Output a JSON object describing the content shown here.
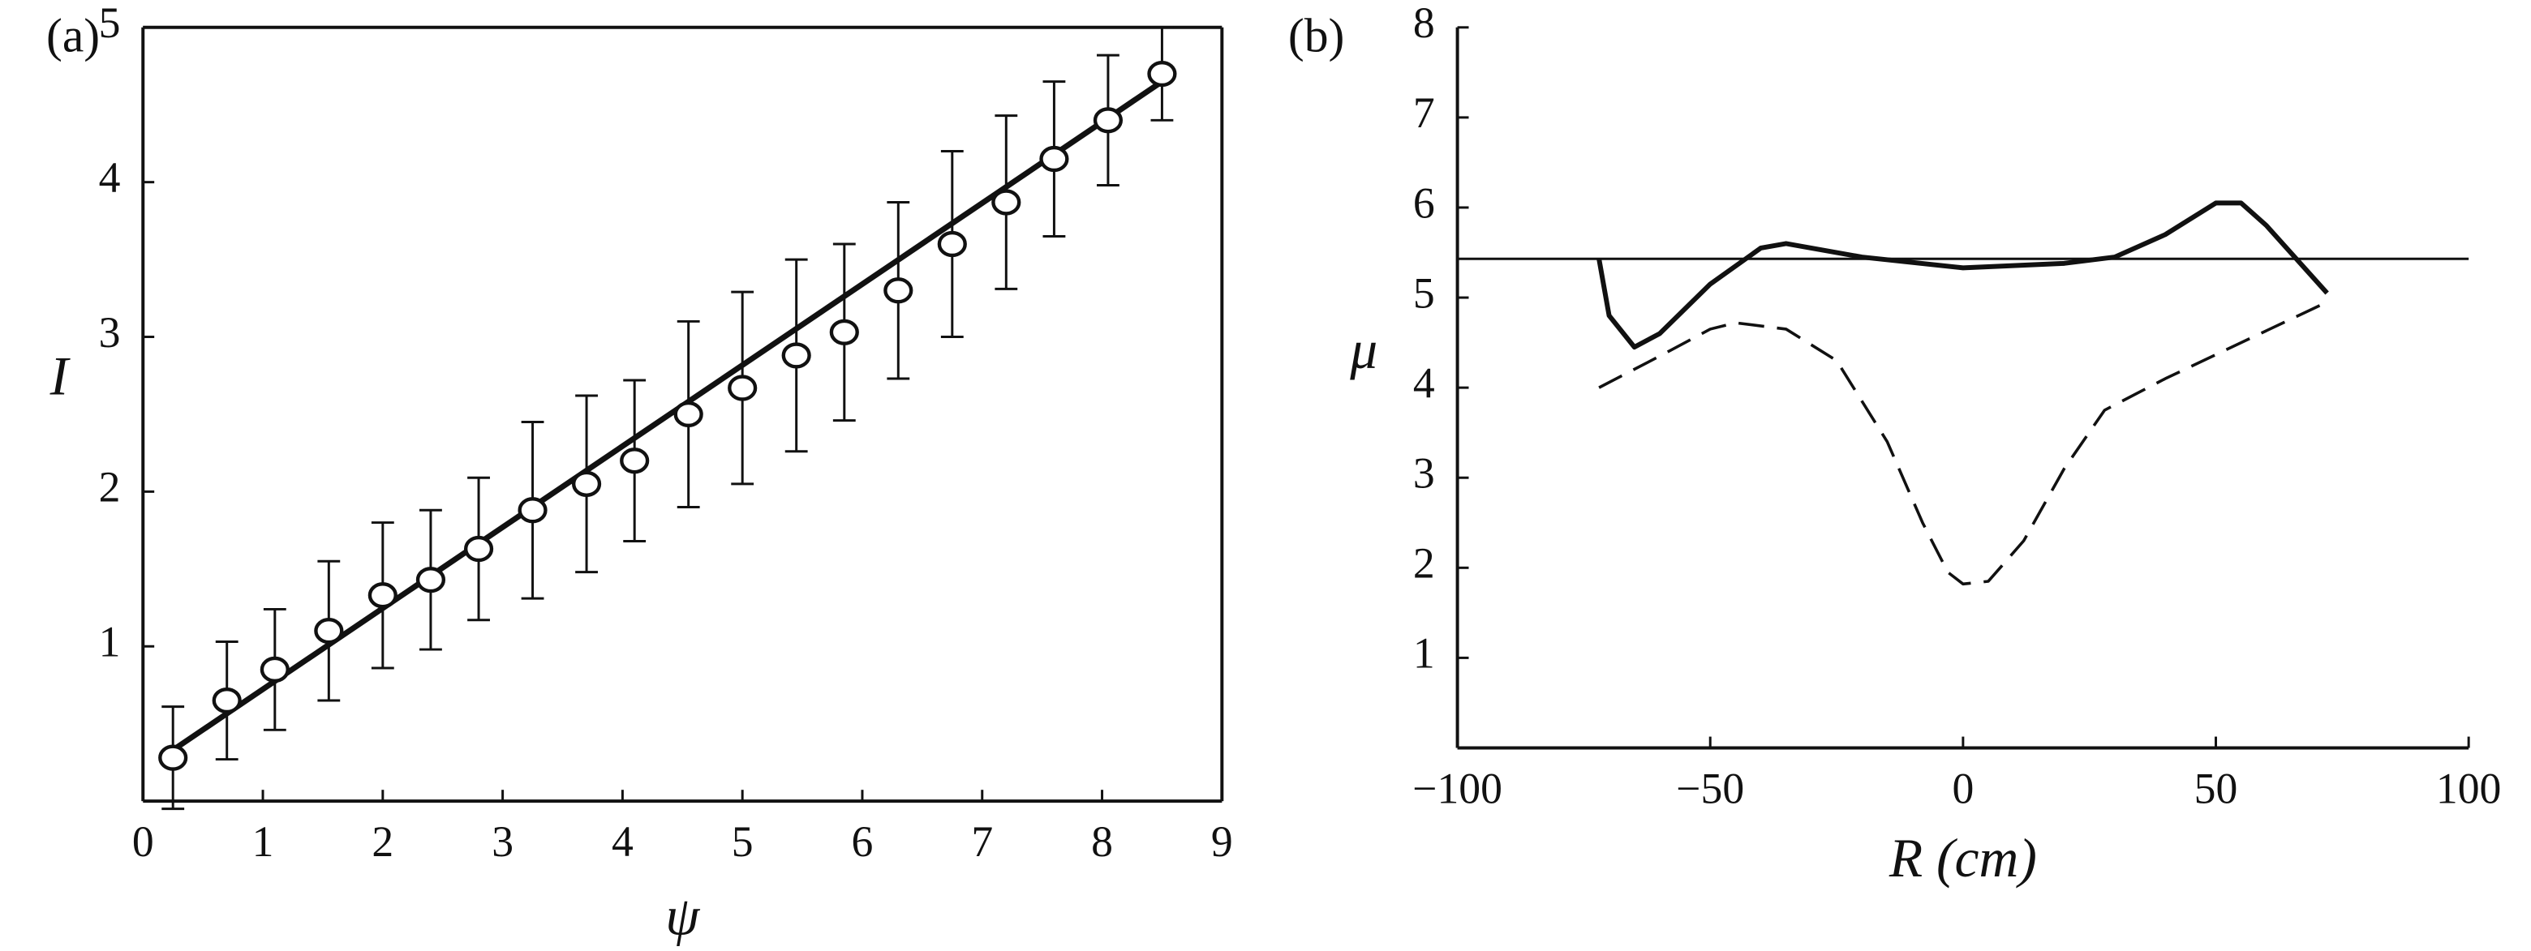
{
  "chart_data": [
    {
      "type": "scatter",
      "panel_label": "(a)",
      "xlabel": "ψ",
      "ylabel": "I",
      "xlim": [
        0,
        9
      ],
      "ylim": [
        0,
        5
      ],
      "xticks": [
        0,
        1,
        2,
        3,
        4,
        5,
        6,
        7,
        8,
        9
      ],
      "yticks": [
        1,
        2,
        3,
        4,
        5
      ],
      "box": true,
      "color": "#111111",
      "series": [
        {
          "x": [
            0.25,
            0.7,
            1.1,
            1.55,
            2.0,
            2.4,
            2.8,
            3.25,
            3.7,
            4.1,
            4.55,
            5.0,
            5.45,
            5.85,
            6.3,
            6.75,
            7.2,
            7.6,
            8.05,
            8.5
          ],
          "values": [
            0.28,
            0.65,
            0.85,
            1.1,
            1.33,
            1.43,
            1.63,
            1.88,
            2.05,
            2.2,
            2.5,
            2.67,
            2.88,
            3.03,
            3.3,
            3.6,
            3.87,
            4.15,
            4.4,
            4.7
          ],
          "errors": [
            0.33,
            0.38,
            0.39,
            0.45,
            0.47,
            0.45,
            0.46,
            0.57,
            0.57,
            0.52,
            0.6,
            0.62,
            0.62,
            0.57,
            0.57,
            0.6,
            0.56,
            0.5,
            0.42,
            0.3
          ]
        }
      ],
      "fit_line": {
        "x": [
          0.25,
          8.5
        ],
        "y": [
          0.33,
          4.65
        ]
      }
    },
    {
      "type": "line",
      "panel_label": "(b)",
      "xlabel": "R (cm)",
      "ylabel": "μ",
      "xlim": [
        -100,
        100
      ],
      "ylim": [
        0,
        8
      ],
      "xticks": [
        {
          "value": -100,
          "label": "−100"
        },
        {
          "value": -50,
          "label": "−50"
        },
        0,
        50,
        100
      ],
      "yticks": [
        1,
        2,
        3,
        4,
        5,
        6,
        7,
        8
      ],
      "box": false,
      "color": "#111111",
      "hline": 5.43,
      "series": [
        {
          "style": "solid",
          "x": [
            -72,
            -70,
            -65,
            -60,
            -50,
            -40,
            -35,
            -20,
            0,
            20,
            30,
            40,
            50,
            55,
            60,
            72
          ],
          "values": [
            5.43,
            4.8,
            4.45,
            4.6,
            5.15,
            5.55,
            5.6,
            5.45,
            5.33,
            5.38,
            5.45,
            5.7,
            6.05,
            6.05,
            5.8,
            5.05
          ]
        },
        {
          "style": "dashed",
          "x": [
            -72,
            -60,
            -50,
            -45,
            -35,
            -25,
            -15,
            -8,
            -3,
            0,
            5,
            12,
            20,
            28,
            40,
            55,
            72
          ],
          "values": [
            4.0,
            4.35,
            4.65,
            4.72,
            4.65,
            4.3,
            3.4,
            2.5,
            1.95,
            1.82,
            1.85,
            2.3,
            3.1,
            3.75,
            4.1,
            4.5,
            4.95
          ]
        }
      ]
    }
  ]
}
